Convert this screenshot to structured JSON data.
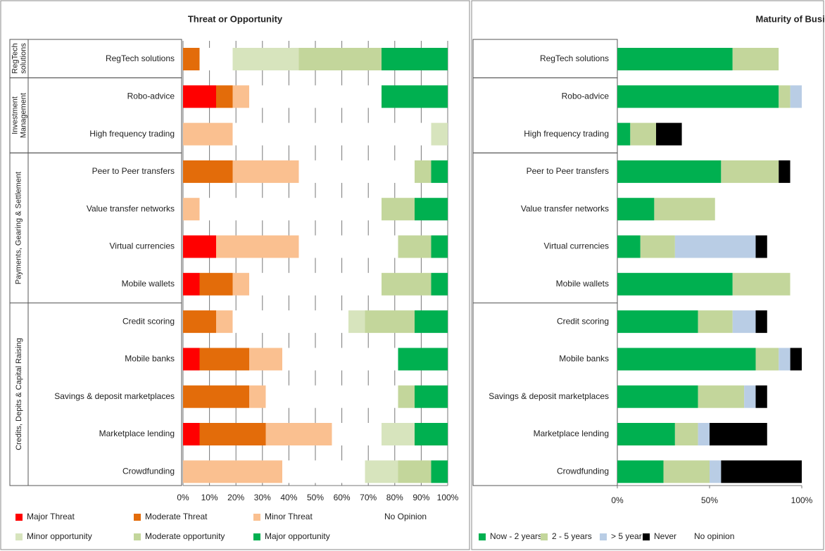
{
  "chart_data": [
    {
      "type": "stacked_barh",
      "title": "Threat or Opportunity",
      "groups": [
        {
          "label": "RegTech solutions",
          "categories": [
            "RegTech solutions"
          ]
        },
        {
          "label": "Investment Management",
          "categories": [
            "Robo-advice",
            "High frequency trading"
          ]
        },
        {
          "label": "Payments, Gearing & Settlement",
          "categories": [
            "Peer to Peer transfers",
            "Value transfer networks",
            "Virtual currencies",
            "Mobile wallets"
          ]
        },
        {
          "label": "Credits, Depits & Capital Raising",
          "categories": [
            "Credit scoring",
            "Mobile banks",
            "Savings & deposit marketplaces",
            "Marketplace lending",
            "Crowdfunding"
          ]
        }
      ],
      "series": [
        {
          "name": "Major Threat",
          "color": "#ff0000",
          "values": [
            0,
            12.5,
            0,
            0,
            0,
            12.5,
            6.25,
            0,
            6.25,
            0,
            6.25,
            0
          ]
        },
        {
          "name": "Moderate Threat",
          "color": "#e36c0a",
          "values": [
            6.25,
            6.25,
            0,
            18.75,
            0,
            0,
            12.5,
            12.5,
            18.75,
            25,
            25,
            0
          ]
        },
        {
          "name": "Minor Threat",
          "color": "#fac090",
          "values": [
            0,
            6.25,
            18.75,
            25,
            6.25,
            31.25,
            6.25,
            6.25,
            12.5,
            6.25,
            25,
            37.5
          ]
        },
        {
          "name": "No Opinion",
          "color": "#ffffff",
          "values": [
            12.5,
            50,
            75,
            43.75,
            68.75,
            37.5,
            50,
            43.75,
            43.75,
            50,
            18.75,
            31.25
          ]
        },
        {
          "name": "Minor opportunity",
          "color": "#d7e4bd",
          "values": [
            25,
            0,
            6.25,
            0,
            0,
            0,
            0,
            6.25,
            0,
            0,
            12.5,
            12.5
          ]
        },
        {
          "name": "Moderate opportunity",
          "color": "#c3d69b",
          "values": [
            31.25,
            0,
            0,
            6.25,
            12.5,
            12.5,
            18.75,
            18.75,
            0,
            6.25,
            0,
            12.5
          ]
        },
        {
          "name": "Major opportunity",
          "color": "#00b050",
          "values": [
            25,
            25,
            0,
            6.25,
            12.5,
            6.25,
            6.25,
            12.5,
            18.75,
            12.5,
            12.5,
            6.25
          ]
        }
      ],
      "xlim": [
        0,
        100
      ],
      "xticks": [
        {
          "value": 0,
          "label": "0%"
        },
        {
          "value": 10,
          "label": "10%"
        },
        {
          "value": 20,
          "label": "20%"
        },
        {
          "value": 30,
          "label": "30%"
        },
        {
          "value": 40,
          "label": "40%"
        },
        {
          "value": 50,
          "label": "50%"
        },
        {
          "value": 60,
          "label": "60%"
        },
        {
          "value": 70,
          "label": "70%"
        },
        {
          "value": 80,
          "label": "80%"
        },
        {
          "value": 90,
          "label": "90%"
        },
        {
          "value": 100,
          "label": "100%"
        }
      ],
      "grid": true
    },
    {
      "type": "stacked_barh",
      "title": "Maturity of Business Model",
      "categories": [
        "RegTech solutions",
        "Robo-advice",
        "High frequency trading",
        "Peer to Peer transfers",
        "Value transfer networks",
        "Virtual currencies",
        "Mobile wallets",
        "Credit scoring",
        "Mobile banks",
        "Savings & deposit marketplaces",
        "Marketplace lending",
        "Crowdfunding"
      ],
      "series": [
        {
          "name": "Now - 2 years",
          "color": "#00b050",
          "values": [
            62.5,
            87.5,
            7,
            56.25,
            20,
            12.5,
            62.5,
            43.75,
            75,
            43.75,
            31.25,
            25
          ]
        },
        {
          "name": "2 - 5 years",
          "color": "#c3d69b",
          "values": [
            25,
            6.25,
            14,
            31.25,
            33,
            18.75,
            31.25,
            18.75,
            12.5,
            25,
            12.5,
            25
          ]
        },
        {
          "name": "> 5 year",
          "color": "#b9cde5",
          "values": [
            0,
            6.25,
            0,
            0,
            0,
            43.75,
            0,
            12.5,
            6.25,
            6.25,
            6.25,
            6.25
          ]
        },
        {
          "name": "Never",
          "color": "#000000",
          "values": [
            0,
            0,
            14,
            6.25,
            0,
            6.25,
            0,
            6.25,
            6.25,
            6.25,
            31.25,
            43.75
          ]
        },
        {
          "name": "No opinion",
          "color": "#ffffff",
          "values": [
            12.5,
            0,
            65,
            6.25,
            47,
            18.75,
            6.25,
            18.75,
            0,
            18.75,
            18.75,
            0
          ]
        }
      ],
      "xlim": [
        0,
        100
      ],
      "xticks": [
        {
          "value": 0,
          "label": "0%"
        },
        {
          "value": 50,
          "label": "50%"
        },
        {
          "value": 100,
          "label": "100%"
        }
      ],
      "grid": false
    }
  ]
}
